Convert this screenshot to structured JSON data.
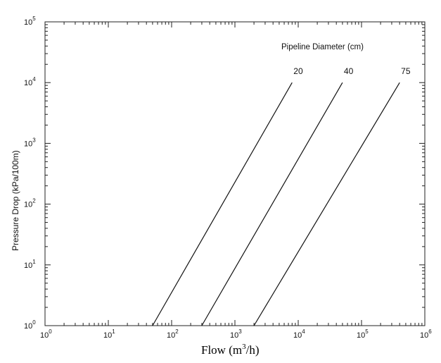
{
  "chart_data": {
    "type": "line",
    "xscale": "log",
    "yscale": "log",
    "xlim": [
      1,
      1000000
    ],
    "ylim": [
      1,
      100000
    ],
    "x_tick_labels": [
      {
        "base": "10",
        "exp": "0"
      },
      {
        "base": "10",
        "exp": "1"
      },
      {
        "base": "10",
        "exp": "2"
      },
      {
        "base": "10",
        "exp": "3"
      },
      {
        "base": "10",
        "exp": "4"
      },
      {
        "base": "10",
        "exp": "5"
      },
      {
        "base": "10",
        "exp": "6"
      }
    ],
    "y_tick_labels": [
      {
        "base": "10",
        "exp": "0"
      },
      {
        "base": "10",
        "exp": "1"
      },
      {
        "base": "10",
        "exp": "2"
      },
      {
        "base": "10",
        "exp": "3"
      },
      {
        "base": "10",
        "exp": "4"
      },
      {
        "base": "10",
        "exp": "5"
      }
    ],
    "ylabel": "Pressure Drop (kPa/100m)",
    "xlabel": {
      "text": "Flow (m",
      "sup": "3",
      "tail": "/h)"
    },
    "legend_title": "Pipeline Diameter (cm)",
    "series": [
      {
        "name": "20",
        "x": [
          50,
          8000
        ],
        "y": [
          1,
          10000
        ]
      },
      {
        "name": "40",
        "x": [
          300,
          50000
        ],
        "y": [
          1,
          10000
        ]
      },
      {
        "name": "75",
        "x": [
          2000,
          400000
        ],
        "y": [
          1,
          10000
        ]
      }
    ],
    "grid": false
  }
}
